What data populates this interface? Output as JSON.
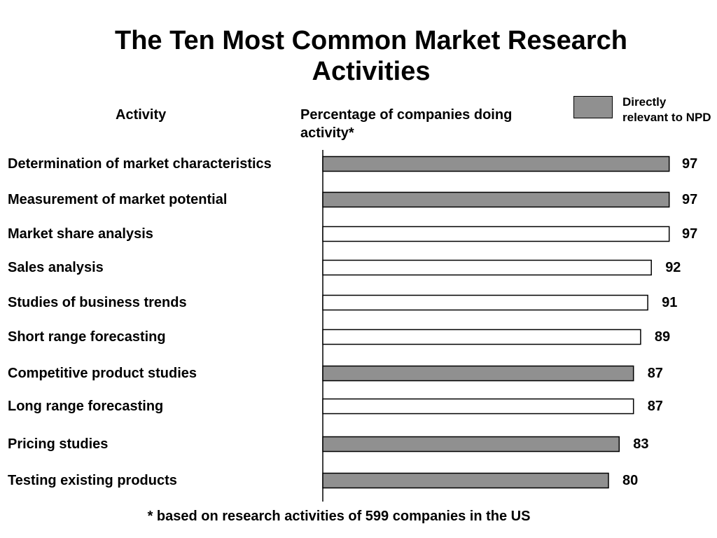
{
  "title": "The Ten Most Common Market Research Activities",
  "column_headers": {
    "activity": "Activity",
    "percentage": "Percentage of companies doing activity*"
  },
  "legend": {
    "label": "Directly relevant to NPD",
    "color": "#909090"
  },
  "colors": {
    "relevant": "#909090",
    "other": "#ffffff",
    "stroke": "#000000"
  },
  "footnote": "* based on research activities of 599 companies in the US",
  "chart_data": {
    "type": "bar",
    "orientation": "horizontal",
    "title": "The Ten Most Common Market Research Activities",
    "xlabel": "Percentage of companies doing activity*",
    "ylabel": "Activity",
    "xlim": [
      0,
      100
    ],
    "grid": false,
    "legend_placement": "top-right",
    "categories": [
      "Determination of market characteristics",
      "Measurement of market potential",
      "Market share analysis",
      "Sales analysis",
      "Studies of business trends",
      "Short range forecasting",
      "Competitive product studies",
      "Long range forecasting",
      "Pricing studies",
      "Testing existing products"
    ],
    "values": [
      97,
      97,
      97,
      92,
      91,
      89,
      87,
      87,
      83,
      80
    ],
    "directly_relevant_to_npd": [
      true,
      true,
      false,
      false,
      false,
      false,
      true,
      false,
      true,
      true
    ]
  }
}
